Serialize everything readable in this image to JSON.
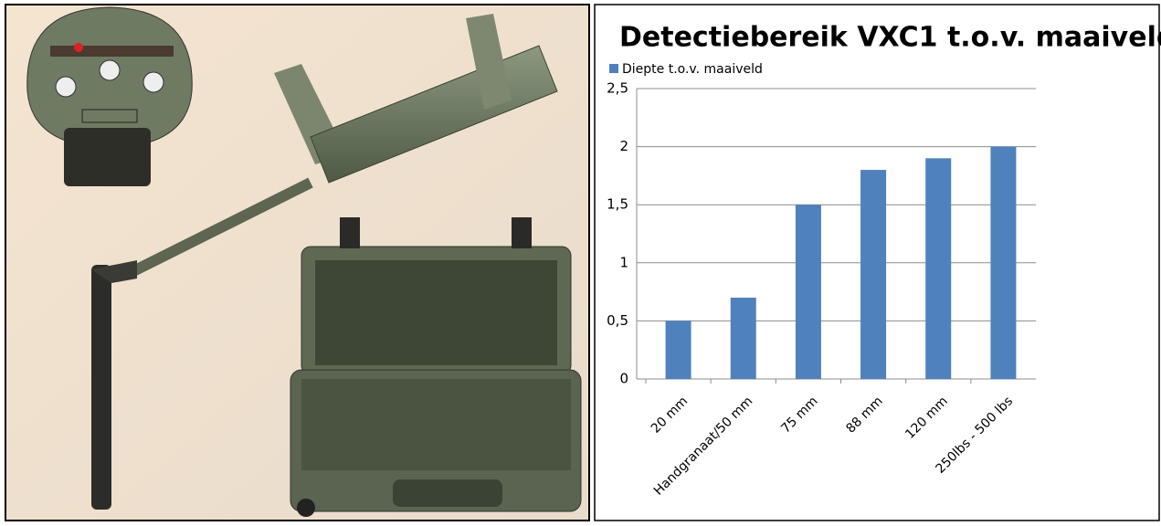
{
  "chart_data": {
    "type": "bar",
    "title": "Detectiebereik VXC1 t.o.v. maaiveld",
    "categories": [
      "20 mm",
      "Handgranaat/50 mm",
      "75 mm",
      "88 mm",
      "120 mm",
      "250lbs - 500 lbs"
    ],
    "series": [
      {
        "name": "Diepte t.o.v. maaiveld",
        "color": "#4f81bd",
        "values": [
          0.5,
          0.7,
          1.5,
          1.8,
          1.9,
          2.0
        ]
      }
    ],
    "ylim": [
      0,
      2.5
    ],
    "yticks": [
      0,
      {
        "value": 0.5,
        "label": "0,5"
      },
      1,
      {
        "value": 1.5,
        "label": "1,5"
      },
      2,
      {
        "value": 2.5,
        "label": "2,5"
      }
    ],
    "grid": true,
    "legend": "top-left"
  }
}
